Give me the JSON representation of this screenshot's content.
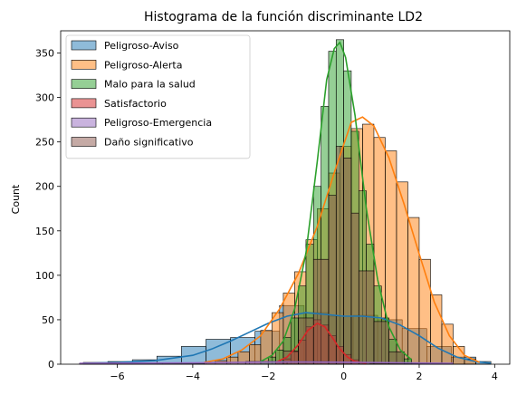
{
  "chart_data": {
    "type": "histogram",
    "title": "Histograma de la función discriminante LD2",
    "xlabel": "",
    "ylabel": "Count",
    "xlim": [
      -7.5,
      4.4
    ],
    "ylim": [
      0,
      375
    ],
    "xticks": [
      -6,
      -4,
      -2,
      0,
      2,
      4
    ],
    "yticks": [
      0,
      50,
      100,
      150,
      200,
      250,
      300,
      350
    ],
    "grid": false,
    "legend_position": "top-left",
    "series": [
      {
        "name": "Peligroso-Aviso",
        "color": "#1f77b4",
        "bins": [
          {
            "x0": -6.9,
            "x1": -6.25,
            "count": 2
          },
          {
            "x0": -6.25,
            "x1": -5.6,
            "count": 3
          },
          {
            "x0": -5.6,
            "x1": -4.95,
            "count": 5
          },
          {
            "x0": -4.95,
            "x1": -4.3,
            "count": 9
          },
          {
            "x0": -4.3,
            "x1": -3.65,
            "count": 20
          },
          {
            "x0": -3.65,
            "x1": -3.0,
            "count": 28
          },
          {
            "x0": -3.0,
            "x1": -2.35,
            "count": 30
          },
          {
            "x0": -2.35,
            "x1": -1.7,
            "count": 37
          },
          {
            "x0": -1.7,
            "x1": -1.05,
            "count": 66
          },
          {
            "x0": -1.05,
            "x1": -0.4,
            "count": 58
          },
          {
            "x0": -0.4,
            "x1": 0.25,
            "count": 54
          },
          {
            "x0": 0.25,
            "x1": 0.9,
            "count": 55
          },
          {
            "x0": 0.9,
            "x1": 1.55,
            "count": 50
          },
          {
            "x0": 1.55,
            "x1": 2.2,
            "count": 40
          },
          {
            "x0": 2.2,
            "x1": 2.85,
            "count": 20
          },
          {
            "x0": 2.85,
            "x1": 3.5,
            "count": 8
          },
          {
            "x0": 3.5,
            "x1": 3.9,
            "count": 3
          }
        ],
        "kde": [
          [
            -6.9,
            1
          ],
          [
            -6,
            2
          ],
          [
            -5,
            4
          ],
          [
            -4,
            10
          ],
          [
            -3.5,
            17
          ],
          [
            -3,
            26
          ],
          [
            -2.5,
            36
          ],
          [
            -2,
            46
          ],
          [
            -1.5,
            54
          ],
          [
            -1,
            58
          ],
          [
            -0.5,
            56
          ],
          [
            0,
            54
          ],
          [
            0.5,
            54
          ],
          [
            1,
            52
          ],
          [
            1.5,
            44
          ],
          [
            2,
            32
          ],
          [
            2.5,
            18
          ],
          [
            3,
            8
          ],
          [
            3.5,
            3
          ],
          [
            3.9,
            1
          ]
        ]
      },
      {
        "name": "Peligroso-Alerta",
        "color": "#ff7f0e",
        "bins": [
          {
            "x0": -3.7,
            "x1": -3.4,
            "count": 2
          },
          {
            "x0": -3.4,
            "x1": -3.1,
            "count": 4
          },
          {
            "x0": -3.1,
            "x1": -2.8,
            "count": 8
          },
          {
            "x0": -2.8,
            "x1": -2.5,
            "count": 14
          },
          {
            "x0": -2.5,
            "x1": -2.2,
            "count": 22
          },
          {
            "x0": -2.2,
            "x1": -1.9,
            "count": 38
          },
          {
            "x0": -1.9,
            "x1": -1.6,
            "count": 58
          },
          {
            "x0": -1.6,
            "x1": -1.3,
            "count": 80
          },
          {
            "x0": -1.3,
            "x1": -1.0,
            "count": 104
          },
          {
            "x0": -1.0,
            "x1": -0.7,
            "count": 140
          },
          {
            "x0": -0.7,
            "x1": -0.4,
            "count": 175
          },
          {
            "x0": -0.4,
            "x1": -0.1,
            "count": 215
          },
          {
            "x0": -0.1,
            "x1": 0.2,
            "count": 245
          },
          {
            "x0": 0.2,
            "x1": 0.5,
            "count": 265
          },
          {
            "x0": 0.5,
            "x1": 0.8,
            "count": 270
          },
          {
            "x0": 0.8,
            "x1": 1.1,
            "count": 255
          },
          {
            "x0": 1.1,
            "x1": 1.4,
            "count": 240
          },
          {
            "x0": 1.4,
            "x1": 1.7,
            "count": 205
          },
          {
            "x0": 1.7,
            "x1": 2.0,
            "count": 165
          },
          {
            "x0": 2.0,
            "x1": 2.3,
            "count": 118
          },
          {
            "x0": 2.3,
            "x1": 2.6,
            "count": 78
          },
          {
            "x0": 2.6,
            "x1": 2.9,
            "count": 45
          },
          {
            "x0": 2.9,
            "x1": 3.2,
            "count": 20
          },
          {
            "x0": 3.2,
            "x1": 3.5,
            "count": 6
          }
        ],
        "kde": [
          [
            -3.7,
            2
          ],
          [
            -3.2,
            6
          ],
          [
            -2.7,
            16
          ],
          [
            -2.2,
            32
          ],
          [
            -1.7,
            62
          ],
          [
            -1.2,
            102
          ],
          [
            -0.7,
            155
          ],
          [
            -0.2,
            222
          ],
          [
            0.2,
            272
          ],
          [
            0.5,
            278
          ],
          [
            0.8,
            268
          ],
          [
            1.2,
            232
          ],
          [
            1.6,
            180
          ],
          [
            2.0,
            124
          ],
          [
            2.4,
            70
          ],
          [
            2.8,
            32
          ],
          [
            3.2,
            10
          ],
          [
            3.6,
            2
          ]
        ]
      },
      {
        "name": "Malo para la salud",
        "color": "#2ca02c",
        "bins": [
          {
            "x0": -2.2,
            "x1": -2.0,
            "count": 3
          },
          {
            "x0": -2.0,
            "x1": -1.8,
            "count": 8
          },
          {
            "x0": -1.8,
            "x1": -1.6,
            "count": 16
          },
          {
            "x0": -1.6,
            "x1": -1.4,
            "count": 30
          },
          {
            "x0": -1.4,
            "x1": -1.2,
            "count": 52
          },
          {
            "x0": -1.2,
            "x1": -1.0,
            "count": 88
          },
          {
            "x0": -1.0,
            "x1": -0.8,
            "count": 135
          },
          {
            "x0": -0.8,
            "x1": -0.6,
            "count": 200
          },
          {
            "x0": -0.6,
            "x1": -0.4,
            "count": 290
          },
          {
            "x0": -0.4,
            "x1": -0.2,
            "count": 352
          },
          {
            "x0": -0.2,
            "x1": 0.0,
            "count": 365
          },
          {
            "x0": 0.0,
            "x1": 0.2,
            "count": 330
          },
          {
            "x0": 0.2,
            "x1": 0.4,
            "count": 262
          },
          {
            "x0": 0.4,
            "x1": 0.6,
            "count": 195
          },
          {
            "x0": 0.6,
            "x1": 0.8,
            "count": 135
          },
          {
            "x0": 0.8,
            "x1": 1.0,
            "count": 88
          },
          {
            "x0": 1.0,
            "x1": 1.2,
            "count": 52
          },
          {
            "x0": 1.2,
            "x1": 1.4,
            "count": 28
          },
          {
            "x0": 1.4,
            "x1": 1.6,
            "count": 14
          },
          {
            "x0": 1.6,
            "x1": 1.8,
            "count": 6
          }
        ],
        "kde": [
          [
            -2.2,
            3
          ],
          [
            -1.9,
            10
          ],
          [
            -1.6,
            26
          ],
          [
            -1.3,
            62
          ],
          [
            -1.0,
            125
          ],
          [
            -0.7,
            228
          ],
          [
            -0.45,
            320
          ],
          [
            -0.25,
            355
          ],
          [
            -0.1,
            362
          ],
          [
            0.05,
            345
          ],
          [
            0.3,
            280
          ],
          [
            0.6,
            175
          ],
          [
            0.9,
            95
          ],
          [
            1.2,
            42
          ],
          [
            1.5,
            16
          ],
          [
            1.8,
            5
          ]
        ]
      },
      {
        "name": "Satisfactorio",
        "color": "#d62728",
        "bins": [
          {
            "x0": -1.8,
            "x1": -1.6,
            "count": 2
          },
          {
            "x0": -1.6,
            "x1": -1.4,
            "count": 6
          },
          {
            "x0": -1.4,
            "x1": -1.2,
            "count": 14
          },
          {
            "x0": -1.2,
            "x1": -1.0,
            "count": 27
          },
          {
            "x0": -1.0,
            "x1": -0.8,
            "count": 42
          },
          {
            "x0": -0.8,
            "x1": -0.6,
            "count": 50
          },
          {
            "x0": -0.6,
            "x1": -0.4,
            "count": 44
          },
          {
            "x0": -0.4,
            "x1": -0.2,
            "count": 32
          },
          {
            "x0": -0.2,
            "x1": 0.0,
            "count": 20
          },
          {
            "x0": 0.0,
            "x1": 0.2,
            "count": 11
          },
          {
            "x0": 0.2,
            "x1": 0.4,
            "count": 5
          },
          {
            "x0": 0.4,
            "x1": 0.6,
            "count": 2
          }
        ],
        "kde": [
          [
            -1.8,
            2
          ],
          [
            -1.5,
            8
          ],
          [
            -1.2,
            22
          ],
          [
            -0.95,
            38
          ],
          [
            -0.7,
            46
          ],
          [
            -0.5,
            42
          ],
          [
            -0.3,
            30
          ],
          [
            -0.1,
            17
          ],
          [
            0.1,
            8
          ],
          [
            0.3,
            3
          ],
          [
            0.6,
            1
          ]
        ]
      },
      {
        "name": "Peligroso-Emergencia",
        "color": "#9467bd",
        "bins": [
          {
            "x0": -7.0,
            "x1": -5.9,
            "count": 1
          },
          {
            "x0": -5.9,
            "x1": -4.8,
            "count": 1
          },
          {
            "x0": -4.8,
            "x1": -3.7,
            "count": 1
          },
          {
            "x0": -3.7,
            "x1": -2.6,
            "count": 2
          },
          {
            "x0": -2.6,
            "x1": -1.5,
            "count": 3
          },
          {
            "x0": -1.5,
            "x1": -0.4,
            "count": 3
          },
          {
            "x0": -0.4,
            "x1": 0.7,
            "count": 2
          },
          {
            "x0": 0.7,
            "x1": 1.8,
            "count": 1
          },
          {
            "x0": 1.8,
            "x1": 2.9,
            "count": 1
          }
        ],
        "kde": [
          [
            -7.0,
            1
          ],
          [
            -4,
            1.5
          ],
          [
            -2,
            2.5
          ],
          [
            -1,
            2.5
          ],
          [
            0.5,
            2
          ],
          [
            2.9,
            1
          ]
        ]
      },
      {
        "name": "Daño significativo",
        "color": "#8c564b",
        "bins": [
          {
            "x0": -1.6,
            "x1": -1.2,
            "count": 15
          },
          {
            "x0": -1.2,
            "x1": -0.8,
            "count": 52
          },
          {
            "x0": -0.8,
            "x1": -0.4,
            "count": 118
          },
          {
            "x0": -0.4,
            "x1": -0.2,
            "count": 190
          },
          {
            "x0": -0.2,
            "x1": 0.0,
            "count": 245
          },
          {
            "x0": 0.0,
            "x1": 0.2,
            "count": 232
          },
          {
            "x0": 0.2,
            "x1": 0.4,
            "count": 170
          },
          {
            "x0": 0.4,
            "x1": 0.8,
            "count": 105
          },
          {
            "x0": 0.8,
            "x1": 1.2,
            "count": 48
          },
          {
            "x0": 1.2,
            "x1": 1.6,
            "count": 14
          }
        ],
        "kde": []
      }
    ]
  }
}
